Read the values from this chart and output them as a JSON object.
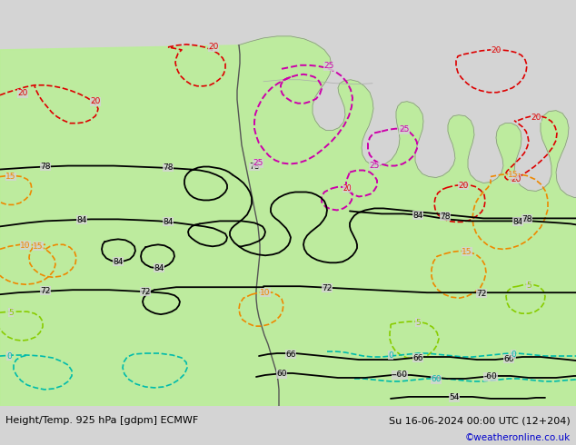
{
  "title_left": "Height/Temp. 925 hPa [gdpm] ECMWF",
  "title_right": "Su 16-06-2024 00:00 UTC (12+204)",
  "watermark": "©weatheronline.co.uk",
  "bg_color": "#d4d4d4",
  "south_america_color": "#bbee99",
  "fig_width": 6.34,
  "fig_height": 4.9,
  "dpi": 100,
  "bottom_text_color": "#000000",
  "watermark_color": "#0000cc",
  "font_size_title": 8.0,
  "font_size_watermark": 7.5,
  "geo_color": "#000000",
  "red_color": "#dd0000",
  "magenta_color": "#cc00aa",
  "orange_color": "#ee8800",
  "green_color": "#88cc00",
  "cyan_color": "#00bbaa",
  "lw_geo": 1.3,
  "lw_temp": 1.2,
  "label_fs": 6.5
}
